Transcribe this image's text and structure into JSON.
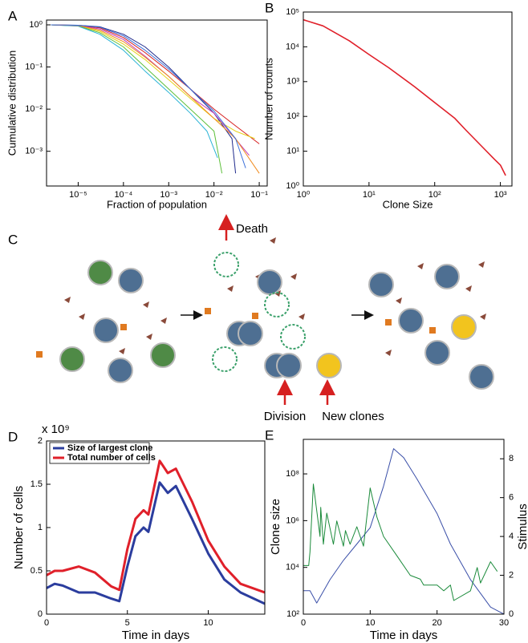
{
  "chart_data": [
    {
      "panel": "A",
      "type": "line",
      "xlabel": "Fraction of population",
      "ylabel": "Cumulative distribution",
      "xscale": "log",
      "yscale": "log",
      "xlim": [
        2e-06,
        0.15
      ],
      "ylim": [
        0.00015,
        1.3
      ],
      "xticks": [
        {
          "value": 1e-05,
          "label": "10⁻⁵"
        },
        {
          "value": 0.0001,
          "label": "10⁻⁴"
        },
        {
          "value": 0.001,
          "label": "10⁻³"
        },
        {
          "value": 0.01,
          "label": "10⁻²"
        },
        {
          "value": 0.1,
          "label": "10⁻¹"
        }
      ],
      "yticks": [
        {
          "value": 0.001,
          "label": "10⁻³"
        },
        {
          "value": 0.01,
          "label": "10⁻²"
        },
        {
          "value": 0.1,
          "label": "10⁻¹"
        },
        {
          "value": 1,
          "label": "10⁰"
        }
      ],
      "linewidth": 1,
      "series": [
        {
          "color": "#1f2a8c",
          "x": [
            2.5e-06,
            1e-05,
            3e-05,
            0.0001,
            0.0003,
            0.001,
            0.003,
            0.01,
            0.025,
            0.03
          ],
          "values": [
            1,
            0.98,
            0.9,
            0.6,
            0.3,
            0.1,
            0.03,
            0.008,
            0.002,
            0.0003
          ]
        },
        {
          "color": "#d61f1f",
          "x": [
            2.5e-06,
            1e-05,
            3e-05,
            0.0001,
            0.0003,
            0.001,
            0.003,
            0.01,
            0.03,
            0.1
          ],
          "values": [
            1,
            0.97,
            0.85,
            0.5,
            0.22,
            0.08,
            0.03,
            0.01,
            0.004,
            0.0015
          ]
        },
        {
          "color": "#e6d21a",
          "x": [
            2.5e-06,
            1e-05,
            3e-05,
            0.0001,
            0.0003,
            0.001,
            0.003,
            0.01,
            0.03,
            0.08
          ],
          "values": [
            1,
            0.95,
            0.7,
            0.35,
            0.15,
            0.05,
            0.018,
            0.006,
            0.003,
            0.002
          ]
        },
        {
          "color": "#5cbf3a",
          "x": [
            2.5e-06,
            1e-05,
            3e-05,
            0.0001,
            0.0003,
            0.001,
            0.003,
            0.01,
            0.015
          ],
          "values": [
            1,
            0.94,
            0.65,
            0.3,
            0.1,
            0.03,
            0.01,
            0.003,
            0.0003
          ]
        },
        {
          "color": "#2ab3d6",
          "x": [
            2.5e-06,
            1e-05,
            3e-05,
            0.0001,
            0.0003,
            0.001,
            0.003,
            0.007,
            0.012
          ],
          "values": [
            1,
            0.93,
            0.6,
            0.25,
            0.08,
            0.025,
            0.008,
            0.003,
            0.0007
          ]
        },
        {
          "color": "#c23cb8",
          "x": [
            2.5e-06,
            1e-05,
            3e-05,
            0.0001,
            0.0003,
            0.001,
            0.003,
            0.01,
            0.06
          ],
          "values": [
            1,
            0.96,
            0.8,
            0.45,
            0.18,
            0.06,
            0.02,
            0.008,
            0.0008
          ]
        },
        {
          "color": "#f08a1c",
          "x": [
            2.5e-06,
            1e-05,
            3e-05,
            0.0001,
            0.0003,
            0.001,
            0.003,
            0.01,
            0.03,
            0.1
          ],
          "values": [
            1,
            0.96,
            0.75,
            0.4,
            0.17,
            0.06,
            0.02,
            0.006,
            0.002,
            0.0003
          ]
        },
        {
          "color": "#3a6fd8",
          "x": [
            2.5e-06,
            1e-05,
            3e-05,
            0.0001,
            0.0003,
            0.001,
            0.003,
            0.01,
            0.03,
            0.05
          ],
          "values": [
            1,
            0.98,
            0.88,
            0.55,
            0.25,
            0.09,
            0.03,
            0.009,
            0.002,
            0.0004
          ]
        }
      ]
    },
    {
      "panel": "B",
      "type": "line",
      "xlabel": "Clone Size",
      "ylabel": "Number of counts",
      "xscale": "log",
      "yscale": "log",
      "xlim": [
        1,
        1500
      ],
      "ylim": [
        1,
        100000
      ],
      "xticks": [
        {
          "value": 1,
          "label": "10⁰"
        },
        {
          "value": 10,
          "label": "10¹"
        },
        {
          "value": 100,
          "label": "10²"
        },
        {
          "value": 1000,
          "label": "10³"
        }
      ],
      "yticks": [
        {
          "value": 1,
          "label": "10⁰"
        },
        {
          "value": 10,
          "label": "10¹"
        },
        {
          "value": 100,
          "label": "10²"
        },
        {
          "value": 1000,
          "label": "10³"
        },
        {
          "value": 10000,
          "label": "10⁴"
        },
        {
          "value": 100000,
          "label": "10⁵"
        }
      ],
      "linewidth": 1.6,
      "series": [
        {
          "color": "#e0202a",
          "x": [
            1,
            2,
            5,
            10,
            20,
            50,
            100,
            200,
            300,
            500,
            800,
            1000,
            1200
          ],
          "values": [
            60000,
            40000,
            15000,
            6000,
            2500,
            700,
            250,
            90,
            40,
            15,
            6,
            4,
            2
          ]
        }
      ]
    },
    {
      "panel": "D",
      "type": "line",
      "xlabel": "Time in days",
      "ylabel": "Number of cells",
      "y_multiplier": "x 10⁹",
      "xlim": [
        0,
        13.5
      ],
      "ylim": [
        0,
        2
      ],
      "xticks": [
        0,
        5,
        10
      ],
      "yticks": [
        0,
        0.5,
        1,
        1.5,
        2
      ],
      "legend": "upper left",
      "linewidth": 3,
      "x": [
        0,
        0.5,
        1,
        2,
        3,
        4,
        4.5,
        5,
        5.5,
        6,
        6.3,
        7,
        7.5,
        8,
        9,
        10,
        11,
        12,
        13.5
      ],
      "series": [
        {
          "name": "Size of largest clone",
          "color": "#2b3d9e",
          "values": [
            0.3,
            0.35,
            0.33,
            0.25,
            0.25,
            0.18,
            0.15,
            0.55,
            0.9,
            1.0,
            0.95,
            1.52,
            1.4,
            1.48,
            1.1,
            0.7,
            0.4,
            0.25,
            0.12
          ]
        },
        {
          "name": "Total number of cells",
          "color": "#e0202a",
          "values": [
            0.45,
            0.5,
            0.5,
            0.55,
            0.48,
            0.32,
            0.28,
            0.75,
            1.1,
            1.2,
            1.15,
            1.77,
            1.63,
            1.68,
            1.3,
            0.85,
            0.55,
            0.35,
            0.25
          ]
        }
      ]
    },
    {
      "panel": "E",
      "type": "line",
      "xlabel": "Time in days",
      "ylabel": "Clone size",
      "y2label": "Stimulus",
      "yaxis_color": "#3a4fa8",
      "y2axis_color": "#1a8a3a",
      "yscale": "log",
      "xlim": [
        0,
        30
      ],
      "ylim": [
        100,
        3000000000
      ],
      "y2lim": [
        0,
        9
      ],
      "xticks": [
        0,
        10,
        20,
        30
      ],
      "yticks": [
        {
          "value": 100,
          "label": "10²"
        },
        {
          "value": 10000,
          "label": "10⁴"
        },
        {
          "value": 1000000,
          "label": "10⁶"
        },
        {
          "value": 100000000,
          "label": "10⁸"
        }
      ],
      "y2ticks": [
        0,
        2,
        4,
        6,
        8
      ],
      "linewidth": 1,
      "series": [
        {
          "color": "#3a4fa8",
          "x": [
            0,
            1,
            2,
            4,
            6,
            8,
            10,
            12,
            13.5,
            15,
            17,
            20,
            22,
            25,
            28,
            30
          ],
          "values": [
            1000,
            1000,
            300,
            3000,
            20000,
            100000,
            500000,
            30000000,
            1200000000,
            500000000,
            60000000,
            2000000,
            100000,
            3000,
            200,
            100
          ]
        },
        {
          "color": "#1a8a3a",
          "axis": "y2",
          "x": [
            0,
            0.8,
            1,
            1.5,
            2.5,
            2.6,
            3,
            3.5,
            4.5,
            5,
            6,
            6.3,
            7,
            8,
            9,
            10,
            11,
            12,
            14,
            16,
            17.5,
            18,
            20,
            21,
            22,
            22.5,
            25,
            26,
            26.5,
            28,
            29
          ],
          "values": [
            2.5,
            2.5,
            3.2,
            6.7,
            4,
            5.5,
            3.6,
            5.2,
            3.6,
            4.8,
            3.5,
            4.3,
            3.6,
            4.5,
            3.5,
            6.5,
            5,
            4,
            3,
            2,
            1.8,
            1.5,
            1.5,
            1.2,
            1.5,
            0.7,
            1.2,
            2.4,
            1.6,
            2.7,
            2.2
          ]
        }
      ]
    }
  ],
  "diagram": {
    "panel": "C",
    "labels": [
      "Death",
      "Division",
      "New clones"
    ]
  }
}
